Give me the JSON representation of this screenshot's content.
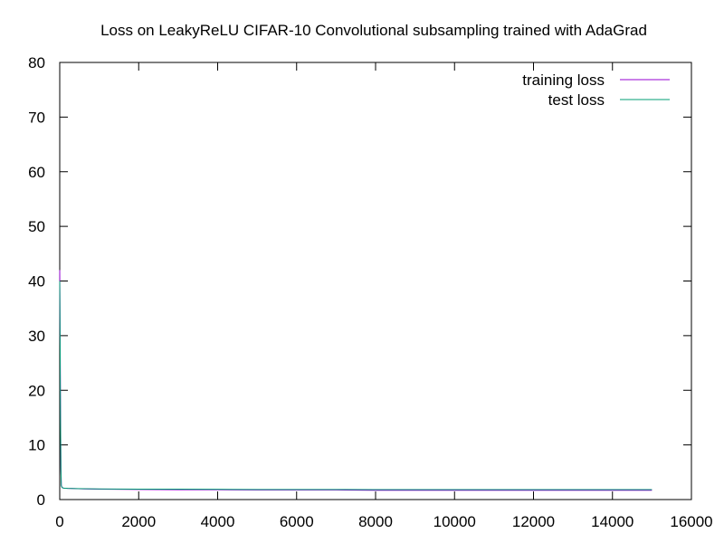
{
  "chart_data": {
    "type": "line",
    "title": "Loss on LeakyReLU CIFAR-10 Convolutional subsampling trained with AdaGrad",
    "xlabel": "",
    "ylabel": "",
    "xlim": [
      0,
      16000
    ],
    "ylim": [
      0,
      80
    ],
    "x_ticks": [
      "0",
      "2000",
      "4000",
      "6000",
      "8000",
      "10000",
      "12000",
      "14000",
      "16000"
    ],
    "y_ticks": [
      "0",
      "10",
      "20",
      "30",
      "40",
      "50",
      "60",
      "70",
      "80"
    ],
    "grid": false,
    "legend_position": "top-right",
    "series": [
      {
        "name": "training loss",
        "color": "#9400d3",
        "x": [
          0,
          10,
          20,
          30,
          40,
          60,
          100,
          200,
          400,
          600,
          1000,
          2000,
          3000,
          4000,
          5000,
          6000,
          7000,
          8000,
          9000,
          10000,
          11000,
          12000,
          13000,
          14000,
          15000
        ],
        "y": [
          42,
          30,
          15,
          6,
          2.6,
          2.2,
          2.1,
          2.05,
          2.0,
          1.95,
          1.9,
          1.85,
          1.8,
          1.8,
          1.75,
          1.75,
          1.75,
          1.7,
          1.7,
          1.7,
          1.7,
          1.7,
          1.7,
          1.7,
          1.7
        ]
      },
      {
        "name": "test loss",
        "color": "#009e73",
        "x": [
          0,
          10,
          20,
          30,
          40,
          60,
          100,
          200,
          400,
          600,
          1000,
          2000,
          3000,
          4000,
          5000,
          6000,
          7000,
          8000,
          9000,
          10000,
          11000,
          12000,
          13000,
          14000,
          15000
        ],
        "y": [
          40,
          28,
          14,
          5.5,
          2.5,
          2.2,
          2.1,
          2.05,
          2.0,
          1.98,
          1.95,
          1.9,
          1.9,
          1.88,
          1.85,
          1.85,
          1.85,
          1.83,
          1.83,
          1.82,
          1.82,
          1.82,
          1.82,
          1.82,
          1.82
        ]
      }
    ]
  }
}
